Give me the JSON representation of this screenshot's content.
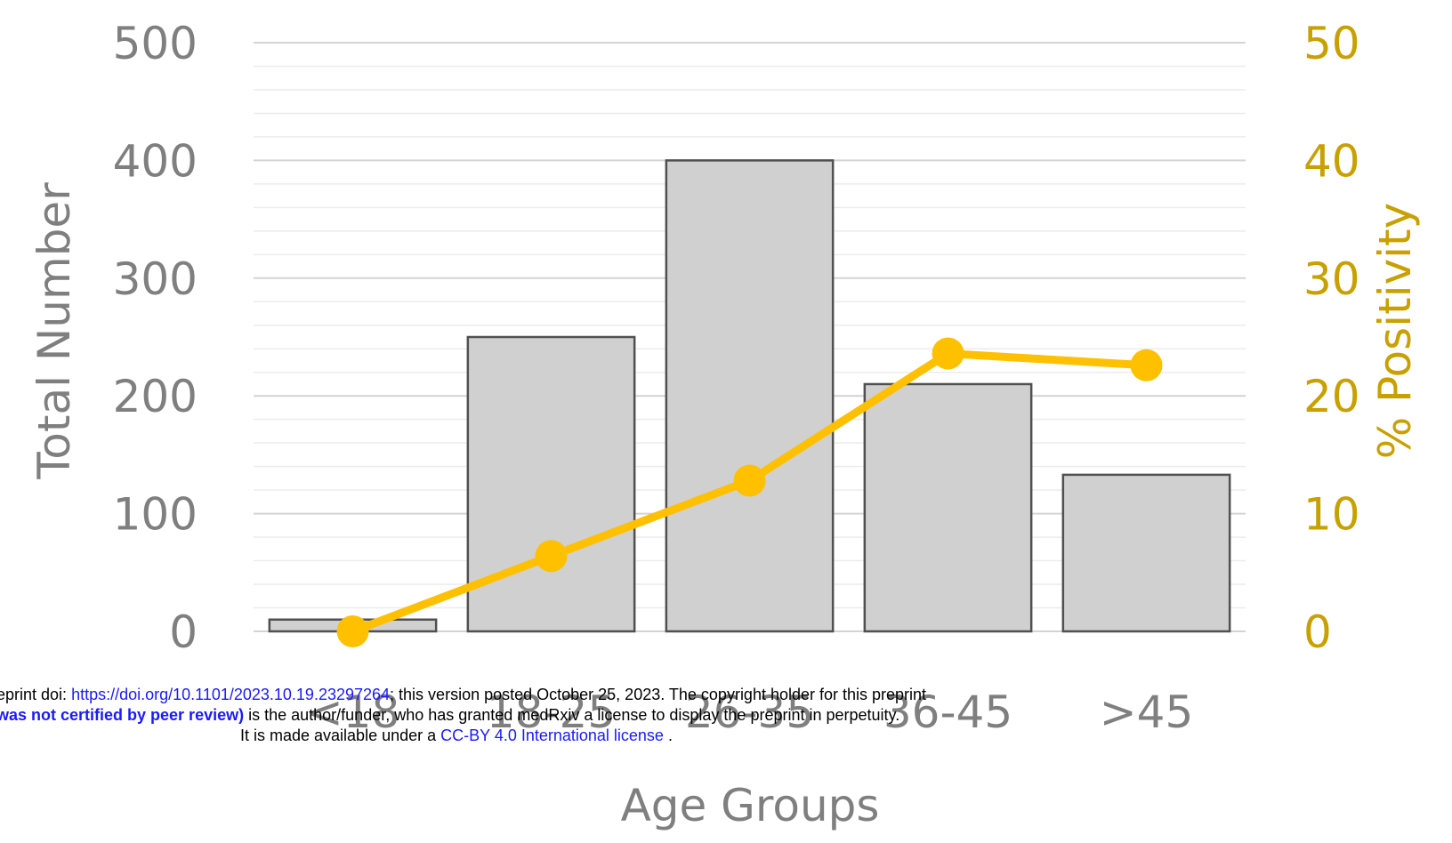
{
  "chart_data": {
    "type": "bar",
    "categories": [
      "<18",
      "18-25",
      "26-35",
      "36-45",
      ">45"
    ],
    "series": [
      {
        "type": "bar",
        "axis": "left",
        "values": [
          10,
          250,
          400,
          210,
          133
        ],
        "color": "#d0d0d0"
      },
      {
        "type": "line",
        "axis": "right",
        "values": [
          0,
          6.4,
          12.8,
          23.6,
          22.6
        ],
        "color": "#ffc000"
      }
    ],
    "title": "",
    "xlabel": "Age Groups",
    "ylabel": "Total Number",
    "y2label": "% Positivity",
    "ylim": [
      0,
      500
    ],
    "y2lim": [
      0,
      50
    ],
    "yticks": [
      "0",
      "100",
      "200",
      "300",
      "400",
      "500"
    ],
    "y2ticks": [
      "0",
      "10",
      "20",
      "30",
      "40",
      "50"
    ],
    "grid": true,
    "legend": "none"
  },
  "watermark": {
    "line1_prefix": "eprint doi: ",
    "line1_link": "https://doi.org/10.1101/2023.10.19.23297264",
    "line1_suffix": "; this version posted October 25, 2023. The copyright holder for this preprint",
    "line2_bold": "was not certified by peer review)",
    "line2_rest": " is the author/funder, who has granted medRxiv a license to display the preprint in perpetuity.",
    "line3_prefix": "It is made available under a ",
    "line3_link": "CC-BY 4.0 International license",
    "line3_suffix": " ."
  },
  "colors": {
    "bar_fill": "#d0d0d0",
    "bar_stroke": "#505050",
    "line": "#ffc000",
    "left_axis_text": "#7f7f7f",
    "right_axis_text": "#c8a000",
    "grid": "#d9d9d9"
  }
}
